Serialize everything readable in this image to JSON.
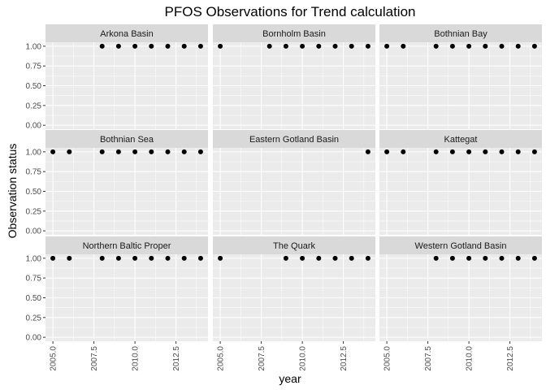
{
  "chart_data": {
    "type": "scatter",
    "title": "PFOS Observations for Trend calculation",
    "xlabel": "year",
    "ylabel": "Observation status",
    "xlim": [
      2004.55,
      2014.45
    ],
    "ylim": [
      -0.05,
      1.05
    ],
    "x_ticks": [
      2005.0,
      2007.5,
      2010.0,
      2012.5
    ],
    "x_tick_labels": [
      "2005.0",
      "2007.5",
      "2010.0",
      "2012.5"
    ],
    "y_ticks": [
      0.0,
      0.25,
      0.5,
      0.75,
      1.0
    ],
    "y_tick_labels": [
      "0.00",
      "0.25",
      "0.50",
      "0.75",
      "1.00"
    ],
    "grid": true,
    "legend": "none",
    "colors": {
      "panel_bg": "#ebebeb",
      "strip_bg": "#d9d9d9",
      "grid": "#ffffff",
      "point": "#000000"
    },
    "facets": [
      {
        "name": "Arkona Basin",
        "x": [
          2008,
          2009,
          2010,
          2011,
          2012,
          2013,
          2014
        ],
        "y": [
          1,
          1,
          1,
          1,
          1,
          1,
          1
        ]
      },
      {
        "name": "Bornholm Basin",
        "x": [
          2005,
          2008,
          2009,
          2010,
          2011,
          2012,
          2013,
          2014
        ],
        "y": [
          1,
          1,
          1,
          1,
          1,
          1,
          1,
          1
        ]
      },
      {
        "name": "Bothnian Bay",
        "x": [
          2005,
          2006,
          2008,
          2009,
          2010,
          2011,
          2012,
          2013,
          2014
        ],
        "y": [
          1,
          1,
          1,
          1,
          1,
          1,
          1,
          1,
          1
        ]
      },
      {
        "name": "Bothnian Sea",
        "x": [
          2005,
          2006,
          2008,
          2009,
          2010,
          2011,
          2012,
          2013,
          2014
        ],
        "y": [
          1,
          1,
          1,
          1,
          1,
          1,
          1,
          1,
          1
        ]
      },
      {
        "name": "Eastern Gotland Basin",
        "x": [
          2014
        ],
        "y": [
          1
        ]
      },
      {
        "name": "Kattegat",
        "x": [
          2005,
          2006,
          2008,
          2009,
          2010,
          2011,
          2012,
          2013,
          2014
        ],
        "y": [
          1,
          1,
          1,
          1,
          1,
          1,
          1,
          1,
          1
        ]
      },
      {
        "name": "Northern Baltic Proper",
        "x": [
          2005,
          2006,
          2008,
          2009,
          2010,
          2011,
          2012,
          2013,
          2014
        ],
        "y": [
          1,
          1,
          1,
          1,
          1,
          1,
          1,
          1,
          1
        ]
      },
      {
        "name": "The Quark",
        "x": [
          2005,
          2009,
          2010,
          2011,
          2012,
          2013,
          2014
        ],
        "y": [
          1,
          1,
          1,
          1,
          1,
          1,
          1
        ]
      },
      {
        "name": "Western Gotland Basin",
        "x": [
          2008,
          2009,
          2010,
          2011,
          2012,
          2013,
          2014
        ],
        "y": [
          1,
          1,
          1,
          1,
          1,
          1,
          1
        ]
      }
    ]
  }
}
